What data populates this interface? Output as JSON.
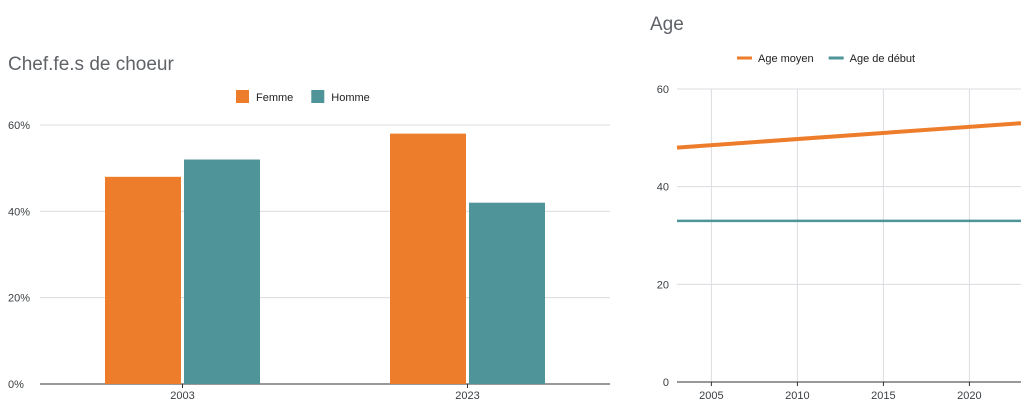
{
  "chart_data": [
    {
      "type": "bar",
      "title": "Chef.fe.s de choeur",
      "categories": [
        "2003",
        "2023"
      ],
      "series": [
        {
          "name": "Femme",
          "color": "#ee7d2b",
          "values": [
            48,
            58
          ]
        },
        {
          "name": "Homme",
          "color": "#4e9499",
          "values": [
            52,
            42
          ]
        }
      ],
      "y_ticks": [
        0,
        20,
        40,
        60
      ],
      "y_tick_format": "percent",
      "ylim": [
        0,
        60
      ],
      "legend_position": "top",
      "grid": "horizontal"
    },
    {
      "type": "line",
      "title": "Age",
      "x_ticks": [
        2005,
        2010,
        2015,
        2020
      ],
      "xlim": [
        2003,
        2023
      ],
      "y_ticks": [
        0,
        20,
        40,
        60
      ],
      "ylim": [
        0,
        60
      ],
      "series": [
        {
          "name": "Age moyen",
          "color": "#ee7d2b",
          "x": [
            2003,
            2023
          ],
          "values": [
            48,
            53
          ]
        },
        {
          "name": "Age de début",
          "color": "#4e9499",
          "x": [
            2003,
            2023
          ],
          "values": [
            33,
            33
          ]
        }
      ],
      "legend_position": "top",
      "grid": "both"
    }
  ]
}
